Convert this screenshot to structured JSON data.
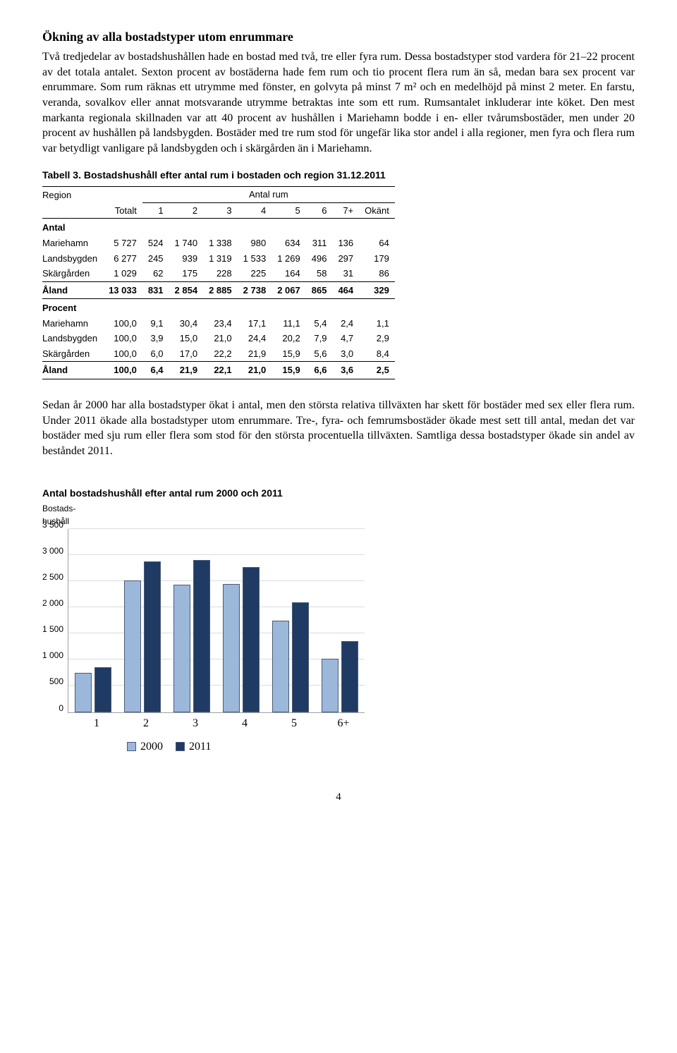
{
  "heading": "Ökning av alla bostadstyper utom enrummare",
  "para1": "Två tredjedelar av bostadshushållen hade en bostad med två, tre eller fyra rum. Dessa bostadstyper stod vardera för 21–22 procent av det totala antalet. Sexton procent av bostäderna hade fem rum och tio procent flera rum än så, medan bara sex procent var enrummare. Som rum räknas ett utrymme med fönster, en golvyta på minst 7 m² och en medelhöjd på minst 2 meter. En farstu, veranda, sovalkov eller annat motsvarande utrymme betraktas inte som ett rum. Rumsantalet inkluderar inte köket. Den mest markanta regionala skillnaden var att 40 procent av hushållen i Mariehamn bodde i en- eller tvårumsbostäder, men under 20 procent av hushållen på landsbygden. Bostäder med tre rum stod för ungefär lika stor andel i alla regioner, men fyra och flera rum var betydligt vanligare på landsbygden och i skärgården än i Mariehamn.",
  "table": {
    "caption": "Tabell 3. Bostadshushåll efter antal rum i bostaden och region 31.12.2011",
    "region_label": "Region",
    "antal_rum_label": "Antal rum",
    "cols": [
      "Totalt",
      "1",
      "2",
      "3",
      "4",
      "5",
      "6",
      "7+",
      "Okänt"
    ],
    "section_antal": "Antal",
    "rows_antal": [
      {
        "label": "Mariehamn",
        "v": [
          "5 727",
          "524",
          "1 740",
          "1 338",
          "980",
          "634",
          "311",
          "136",
          "64"
        ]
      },
      {
        "label": "Landsbygden",
        "v": [
          "6 277",
          "245",
          "939",
          "1 319",
          "1 533",
          "1 269",
          "496",
          "297",
          "179"
        ]
      },
      {
        "label": "Skärgården",
        "v": [
          "1 029",
          "62",
          "175",
          "228",
          "225",
          "164",
          "58",
          "31",
          "86"
        ]
      }
    ],
    "total_antal": {
      "label": "Åland",
      "v": [
        "13 033",
        "831",
        "2 854",
        "2 885",
        "2 738",
        "2 067",
        "865",
        "464",
        "329"
      ]
    },
    "section_procent": "Procent",
    "rows_procent": [
      {
        "label": "Mariehamn",
        "v": [
          "100,0",
          "9,1",
          "30,4",
          "23,4",
          "17,1",
          "11,1",
          "5,4",
          "2,4",
          "1,1"
        ]
      },
      {
        "label": "Landsbygden",
        "v": [
          "100,0",
          "3,9",
          "15,0",
          "21,0",
          "24,4",
          "20,2",
          "7,9",
          "4,7",
          "2,9"
        ]
      },
      {
        "label": "Skärgården",
        "v": [
          "100,0",
          "6,0",
          "17,0",
          "22,2",
          "21,9",
          "15,9",
          "5,6",
          "3,0",
          "8,4"
        ]
      }
    ],
    "total_procent": {
      "label": "Åland",
      "v": [
        "100,0",
        "6,4",
        "21,9",
        "22,1",
        "21,0",
        "15,9",
        "6,6",
        "3,6",
        "2,5"
      ]
    }
  },
  "para2": "Sedan år 2000 har alla bostadstyper ökat i antal, men den största relativa tillväxten har skett för bostäder med sex eller flera rum. Under 2011 ökade alla bostadstyper utom enrummare. Tre-, fyra- och femrumsbostäder ökade mest sett till antal, medan det var bostäder med sju rum eller flera som stod för den största procentuella tillväxten. Samtliga dessa bostadstyper ökade sin andel av beståndet 2011.",
  "chart": {
    "caption": "Antal bostadshushåll efter antal rum 2000 och 2011",
    "ylabel_line1": "Bostads-",
    "ylabel_line2": "hushåll",
    "ymax": 3500,
    "yticks": [
      "3 500",
      "3 000",
      "2 500",
      "2 000",
      "1 500",
      "1 000",
      "500",
      "0"
    ],
    "categories": [
      "1",
      "2",
      "3",
      "4",
      "5",
      "6+"
    ],
    "series": [
      {
        "name": "2000",
        "color": "#9bb8db",
        "values": [
          720,
          2490,
          2400,
          2420,
          1720,
          990
        ]
      },
      {
        "name": "2011",
        "color": "#1f3a63",
        "values": [
          830,
          2850,
          2880,
          2740,
          2070,
          1330
        ]
      }
    ],
    "grid_color": "#d9dce0"
  },
  "page_number": "4"
}
